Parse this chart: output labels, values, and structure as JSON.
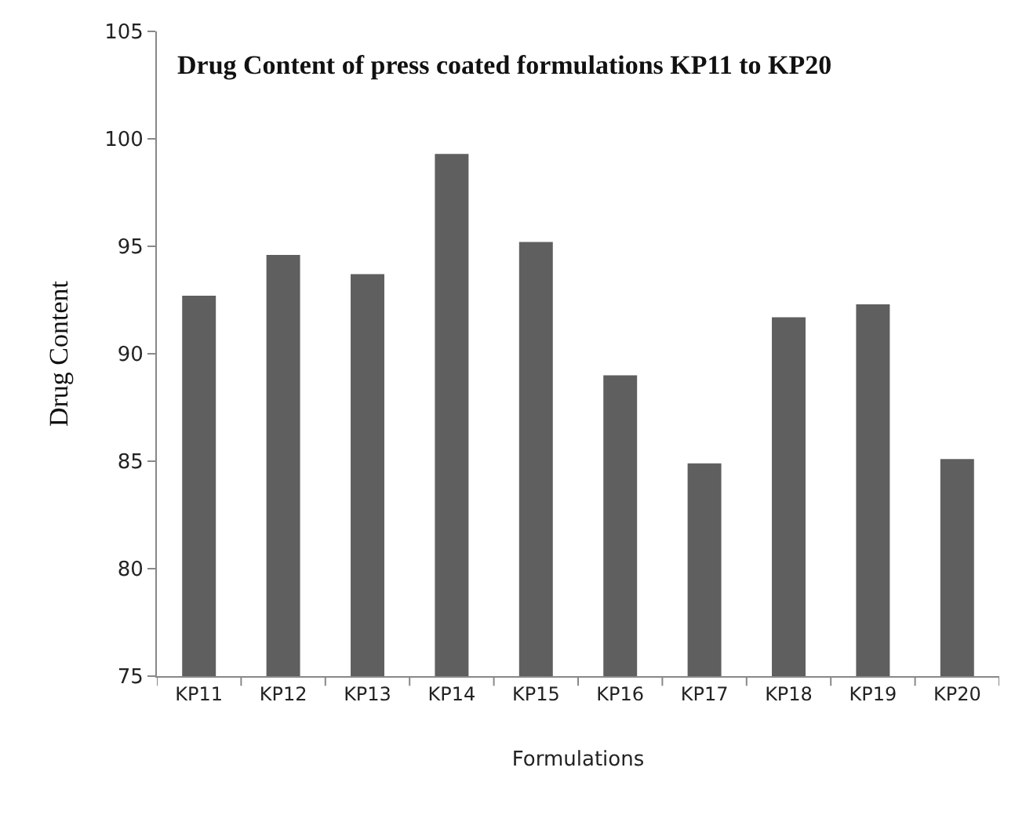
{
  "chart_data": {
    "type": "bar",
    "title": "Drug Content of press coated formulations KP11 to KP20",
    "xlabel": "Formulations",
    "ylabel": "Drug Content",
    "categories": [
      "KP11",
      "KP12",
      "KP13",
      "KP14",
      "KP15",
      "KP16",
      "KP17",
      "KP18",
      "KP19",
      "KP20"
    ],
    "values": [
      92.7,
      94.6,
      93.7,
      99.3,
      95.2,
      89.0,
      84.9,
      91.7,
      92.3,
      85.1
    ],
    "color": "#5f5f5f",
    "ylim": [
      75,
      105
    ],
    "yticks": [
      75,
      80,
      85,
      90,
      95,
      100,
      105
    ],
    "grid": false,
    "legend": false
  }
}
